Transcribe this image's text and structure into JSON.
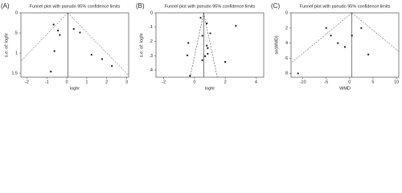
{
  "chart_data": [
    {
      "type": "scatter",
      "panel_label": "(A)",
      "title": "Funnel plot with pseudo 95% confidence limits",
      "x_label": "loghr",
      "y_label": "s.e. of: loghr",
      "pooled_estimate": 0.05,
      "x": [
        -0.66,
        -0.44,
        -0.35,
        0.35,
        0.66,
        -0.62,
        1.24,
        1.77,
        2.26,
        -0.8
      ],
      "values": [
        0.29,
        0.44,
        0.55,
        0.4,
        0.49,
        0.95,
        1.04,
        1.15,
        1.32,
        1.46
      ],
      "xlim": [
        -2.3,
        3.1
      ],
      "xticks": [
        -2,
        -1,
        0,
        1,
        2,
        3
      ],
      "ylim": [
        0,
        1.6
      ],
      "yticks": [
        0,
        {
          "value": 0.5,
          "label": ".5"
        },
        1,
        1.5
      ],
      "y_reversed": true,
      "color": "#111"
    },
    {
      "type": "scatter",
      "panel_label": "(B)",
      "title": "Funnel plot with pseudo 95% confidence limits",
      "x_label": "loghr",
      "y_label": "s.e. of: loghr",
      "pooled_estimate": 0.6,
      "x": [
        0.4,
        0.8,
        1.03,
        0.51,
        2.69,
        -0.4,
        0.8,
        0.86,
        0.86,
        -0.46,
        0.69,
        0.51,
        2,
        -0.29
      ],
      "values": [
        0.034,
        0.074,
        0.143,
        0.16,
        0.091,
        0.211,
        0.229,
        0.246,
        0.286,
        0.297,
        0.303,
        0.331,
        0.343,
        0.44
      ],
      "xlim": [
        -2.5,
        4.5
      ],
      "xticks": [
        -2,
        0,
        2,
        4
      ],
      "ylim": [
        0,
        0.45
      ],
      "yticks": [
        0,
        {
          "value": 0.1,
          "label": ".1"
        },
        {
          "value": 0.2,
          "label": ".2"
        },
        {
          "value": 0.3,
          "label": ".3"
        },
        {
          "value": 0.4,
          "label": ".4"
        }
      ],
      "y_reversed": true,
      "color": "#111"
    },
    {
      "type": "scatter",
      "panel_label": "(C)",
      "title": "Funnel plot with pseudo 95% confidence limits",
      "x_label": "WMD",
      "y_label": "se(WMD)",
      "pooled_estimate": 0.5,
      "x": [
        -5,
        -4,
        -2.5,
        -1,
        0.5,
        2.5,
        4,
        -11
      ],
      "values": [
        2,
        3,
        4,
        4.5,
        3,
        2,
        5.5,
        8
      ],
      "xlim": [
        -12.5,
        10.5
      ],
      "xticks": [
        -10,
        -5,
        0,
        5,
        10
      ],
      "ylim": [
        0,
        8.5
      ],
      "yticks": [
        0,
        2,
        4,
        6,
        8
      ],
      "y_reversed": true,
      "color": "#111"
    }
  ]
}
